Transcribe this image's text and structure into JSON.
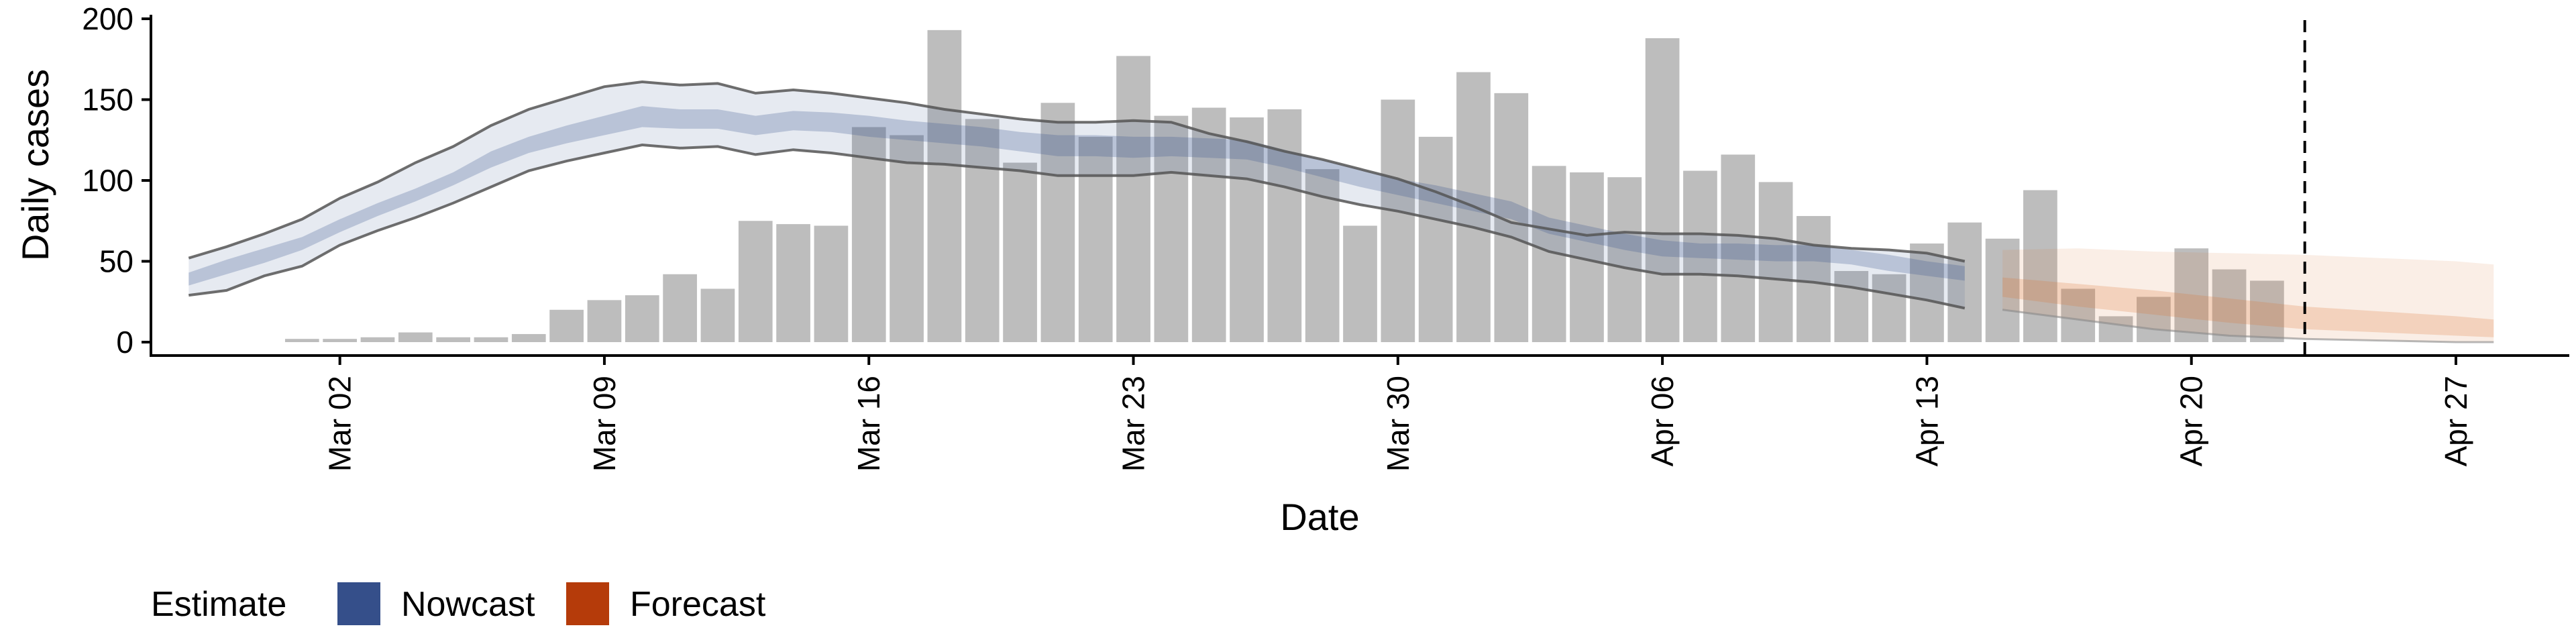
{
  "chart_data": {
    "type": "bar",
    "xlabel": "Date",
    "ylabel": "Daily cases",
    "ylim": [
      0,
      200
    ],
    "yticks": [
      0,
      50,
      100,
      150,
      200
    ],
    "xlim": [
      "2020-02-26",
      "2020-04-30"
    ],
    "xticks": [
      {
        "date": "2020-03-02",
        "label": "Mar 02"
      },
      {
        "date": "2020-03-09",
        "label": "Mar 09"
      },
      {
        "date": "2020-03-16",
        "label": "Mar 16"
      },
      {
        "date": "2020-03-23",
        "label": "Mar 23"
      },
      {
        "date": "2020-03-30",
        "label": "Mar 30"
      },
      {
        "date": "2020-04-06",
        "label": "Apr 06"
      },
      {
        "date": "2020-04-13",
        "label": "Apr 13"
      },
      {
        "date": "2020-04-20",
        "label": "Apr 20"
      },
      {
        "date": "2020-04-27",
        "label": "Apr 27"
      }
    ],
    "grid": false,
    "vline_date": "2020-04-23",
    "bar_color": "#bdbdbd",
    "observed": {
      "dates": [
        "2020-03-01",
        "2020-03-02",
        "2020-03-03",
        "2020-03-04",
        "2020-03-05",
        "2020-03-06",
        "2020-03-07",
        "2020-03-08",
        "2020-03-09",
        "2020-03-10",
        "2020-03-11",
        "2020-03-12",
        "2020-03-13",
        "2020-03-14",
        "2020-03-15",
        "2020-03-16",
        "2020-03-17",
        "2020-03-18",
        "2020-03-19",
        "2020-03-20",
        "2020-03-21",
        "2020-03-22",
        "2020-03-23",
        "2020-03-24",
        "2020-03-25",
        "2020-03-26",
        "2020-03-27",
        "2020-03-28",
        "2020-03-29",
        "2020-03-30",
        "2020-03-31",
        "2020-04-01",
        "2020-04-02",
        "2020-04-03",
        "2020-04-04",
        "2020-04-05",
        "2020-04-06",
        "2020-04-07",
        "2020-04-08",
        "2020-04-09",
        "2020-04-10",
        "2020-04-11",
        "2020-04-12",
        "2020-04-13",
        "2020-04-14",
        "2020-04-15",
        "2020-04-16",
        "2020-04-17",
        "2020-04-18",
        "2020-04-19",
        "2020-04-20",
        "2020-04-21",
        "2020-04-22",
        "2020-04-23"
      ],
      "values": [
        2,
        2,
        3,
        6,
        3,
        3,
        5,
        20,
        26,
        29,
        42,
        33,
        75,
        73,
        72,
        133,
        128,
        193,
        138,
        111,
        148,
        127,
        177,
        140,
        145,
        139,
        144,
        107,
        72,
        150,
        127,
        167,
        154,
        109,
        105,
        102,
        188,
        106,
        116,
        99,
        78,
        44,
        42,
        61,
        74,
        64,
        94,
        33,
        16,
        28,
        58,
        45,
        38,
        0
      ]
    },
    "estimate": {
      "dates": [
        "2020-02-27",
        "2020-02-28",
        "2020-02-29",
        "2020-03-01",
        "2020-03-02",
        "2020-03-03",
        "2020-03-04",
        "2020-03-05",
        "2020-03-06",
        "2020-03-07",
        "2020-03-08",
        "2020-03-09",
        "2020-03-10",
        "2020-03-11",
        "2020-03-12",
        "2020-03-13",
        "2020-03-14",
        "2020-03-15",
        "2020-03-16",
        "2020-03-17",
        "2020-03-18",
        "2020-03-19",
        "2020-03-20",
        "2020-03-21",
        "2020-03-22",
        "2020-03-23",
        "2020-03-24",
        "2020-03-25",
        "2020-03-26",
        "2020-03-27",
        "2020-03-28",
        "2020-03-29",
        "2020-03-30",
        "2020-03-31",
        "2020-04-01",
        "2020-04-02",
        "2020-04-03",
        "2020-04-04",
        "2020-04-05",
        "2020-04-06",
        "2020-04-07",
        "2020-04-08",
        "2020-04-09",
        "2020-04-10",
        "2020-04-11",
        "2020-04-12",
        "2020-04-13",
        "2020-04-14"
      ],
      "outer_lower": [
        29,
        32,
        41,
        47,
        60,
        69,
        77,
        86,
        96,
        106,
        112,
        117,
        122,
        120,
        121,
        116,
        119,
        117,
        114,
        111,
        110,
        108,
        106,
        103,
        103,
        103,
        105,
        103,
        101,
        96,
        90,
        85,
        81,
        76,
        71,
        65,
        56,
        51,
        46,
        42,
        42,
        41,
        39,
        37,
        34,
        30,
        26,
        21
      ],
      "inner_lower": [
        35,
        42,
        49,
        57,
        68,
        78,
        87,
        97,
        108,
        117,
        123,
        128,
        133,
        132,
        132,
        128,
        131,
        130,
        127,
        125,
        123,
        121,
        118,
        115,
        115,
        114,
        115,
        114,
        113,
        108,
        102,
        96,
        91,
        86,
        81,
        76,
        67,
        62,
        57,
        53,
        52,
        51,
        50,
        50,
        48,
        44,
        41,
        38
      ],
      "inner_upper": [
        43,
        51,
        58,
        65,
        76,
        86,
        95,
        105,
        118,
        127,
        134,
        140,
        146,
        144,
        144,
        140,
        143,
        142,
        140,
        137,
        135,
        133,
        130,
        128,
        128,
        127,
        127,
        126,
        125,
        119,
        113,
        107,
        101,
        97,
        92,
        87,
        77,
        72,
        67,
        63,
        61,
        61,
        60,
        60,
        57,
        54,
        50,
        47
      ],
      "outer_upper": [
        52,
        59,
        67,
        76,
        89,
        99,
        111,
        121,
        134,
        144,
        151,
        158,
        161,
        159,
        160,
        154,
        156,
        154,
        151,
        148,
        144,
        141,
        138,
        136,
        136,
        137,
        136,
        129,
        124,
        118,
        113,
        107,
        101,
        93,
        84,
        74,
        70,
        66,
        68,
        67,
        67,
        66,
        64,
        60,
        58,
        57,
        55,
        50
      ]
    },
    "forecast": {
      "dates": [
        "2020-04-15",
        "2020-04-17",
        "2020-04-19",
        "2020-04-21",
        "2020-04-23",
        "2020-04-25",
        "2020-04-27",
        "2020-04-28"
      ],
      "outer_lower": [
        20,
        14,
        8,
        4,
        2,
        1,
        0,
        0
      ],
      "inner_lower": [
        28,
        22,
        17,
        12,
        8,
        6,
        4,
        3
      ],
      "inner_upper": [
        40,
        36,
        32,
        27,
        22,
        19,
        16,
        14
      ],
      "outer_upper": [
        57,
        58,
        56,
        55,
        54,
        52,
        50,
        48
      ]
    },
    "legend": {
      "title": "Estimate",
      "placement": "bottom-left",
      "items": [
        {
          "label": "Nowcast",
          "color": "#354f8a"
        },
        {
          "label": "Forecast",
          "color": "#b53b0a"
        }
      ]
    }
  }
}
